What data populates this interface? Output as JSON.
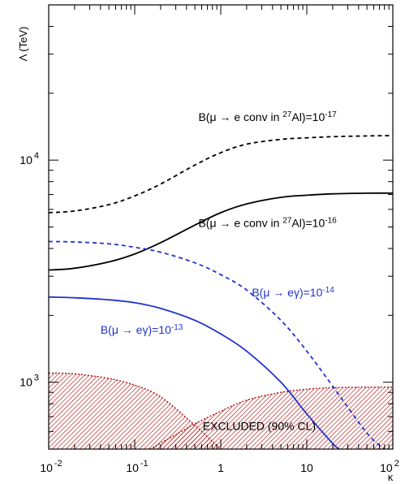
{
  "chart_data": {
    "type": "line",
    "title": "",
    "xlabel": "κ",
    "ylabel": "Λ (TeV)",
    "x_scale": "log",
    "y_scale": "log",
    "xlim": [
      0.01,
      100
    ],
    "ylim": [
      500,
      50000
    ],
    "x_ticks": [
      {
        "value": 0.01,
        "base": "10",
        "exp": "-2"
      },
      {
        "value": 0.1,
        "base": "10",
        "exp": "-1"
      },
      {
        "value": 1,
        "base": "1",
        "exp": ""
      },
      {
        "value": 10,
        "base": "10",
        "exp": ""
      },
      {
        "value": 100,
        "base": "10",
        "exp": "2"
      }
    ],
    "y_ticks": [
      {
        "value": 1000,
        "base": "10",
        "exp": "3"
      },
      {
        "value": 10000,
        "base": "10",
        "exp": "4"
      }
    ],
    "grid": false,
    "series": [
      {
        "name": "B(μ → e conv in 27Al)=10-17",
        "label_parts": {
          "pre": "B(μ → e conv in ",
          "sup1": "27",
          "mid": "Al)=10",
          "sup2": "-17"
        },
        "color": "#000000",
        "style": "dashed",
        "x": [
          0.01,
          0.02,
          0.05,
          0.1,
          0.2,
          0.5,
          1,
          2,
          5,
          10,
          20,
          50,
          100
        ],
        "y": [
          5800,
          5900,
          6300,
          6900,
          7800,
          9500,
          10800,
          11800,
          12400,
          12600,
          12750,
          12850,
          12900
        ]
      },
      {
        "name": "B(μ → e conv in 27Al)=10-16",
        "label_parts": {
          "pre": "B(μ → e conv in ",
          "sup1": "27",
          "mid": "Al)=10",
          "sup2": "-16"
        },
        "color": "#000000",
        "style": "solid",
        "x": [
          0.01,
          0.02,
          0.05,
          0.1,
          0.2,
          0.5,
          1,
          2,
          5,
          10,
          20,
          50,
          100
        ],
        "y": [
          3200,
          3260,
          3480,
          3780,
          4250,
          5100,
          5800,
          6350,
          6800,
          6950,
          7050,
          7100,
          7100
        ]
      },
      {
        "name": "B(μ → eγ)=10-14",
        "label_parts": {
          "pre": "B(μ → eγ)=10",
          "sup1": "",
          "mid": "",
          "sup2": "-14"
        },
        "color": "#2233cc",
        "style": "dashed",
        "x": [
          0.01,
          0.02,
          0.05,
          0.1,
          0.2,
          0.5,
          1,
          2,
          5,
          10,
          20,
          50,
          80
        ],
        "y": [
          4300,
          4280,
          4200,
          4050,
          3850,
          3450,
          3050,
          2600,
          1900,
          1380,
          960,
          590,
          500
        ]
      },
      {
        "name": "B(μ → eγ)=10-13",
        "label_parts": {
          "pre": "B(μ → eγ)=10",
          "sup1": "",
          "mid": "",
          "sup2": "-13"
        },
        "color": "#2233cc",
        "style": "solid",
        "x": [
          0.01,
          0.02,
          0.05,
          0.1,
          0.2,
          0.5,
          1,
          2,
          5,
          10,
          20,
          24
        ],
        "y": [
          2420,
          2400,
          2350,
          2280,
          2150,
          1900,
          1650,
          1380,
          1000,
          720,
          530,
          500
        ]
      }
    ],
    "regions": [
      {
        "name": "excluded-conversion",
        "color": "#aa1111",
        "x": [
          0.01,
          0.02,
          0.05,
          0.1,
          0.2,
          0.5,
          1
        ],
        "y": [
          1100,
          1090,
          1040,
          970,
          860,
          640,
          500
        ]
      },
      {
        "name": "excluded-meg",
        "color": "#aa1111",
        "x": [
          0.15,
          0.3,
          0.5,
          1,
          2,
          5,
          10,
          20,
          50,
          100
        ],
        "y": [
          500,
          580,
          650,
          740,
          830,
          900,
          930,
          945,
          950,
          950
        ]
      }
    ],
    "annotations": [
      {
        "text": "EXCLUDED (90% CL)",
        "x": 2.8,
        "y": 610
      }
    ]
  }
}
